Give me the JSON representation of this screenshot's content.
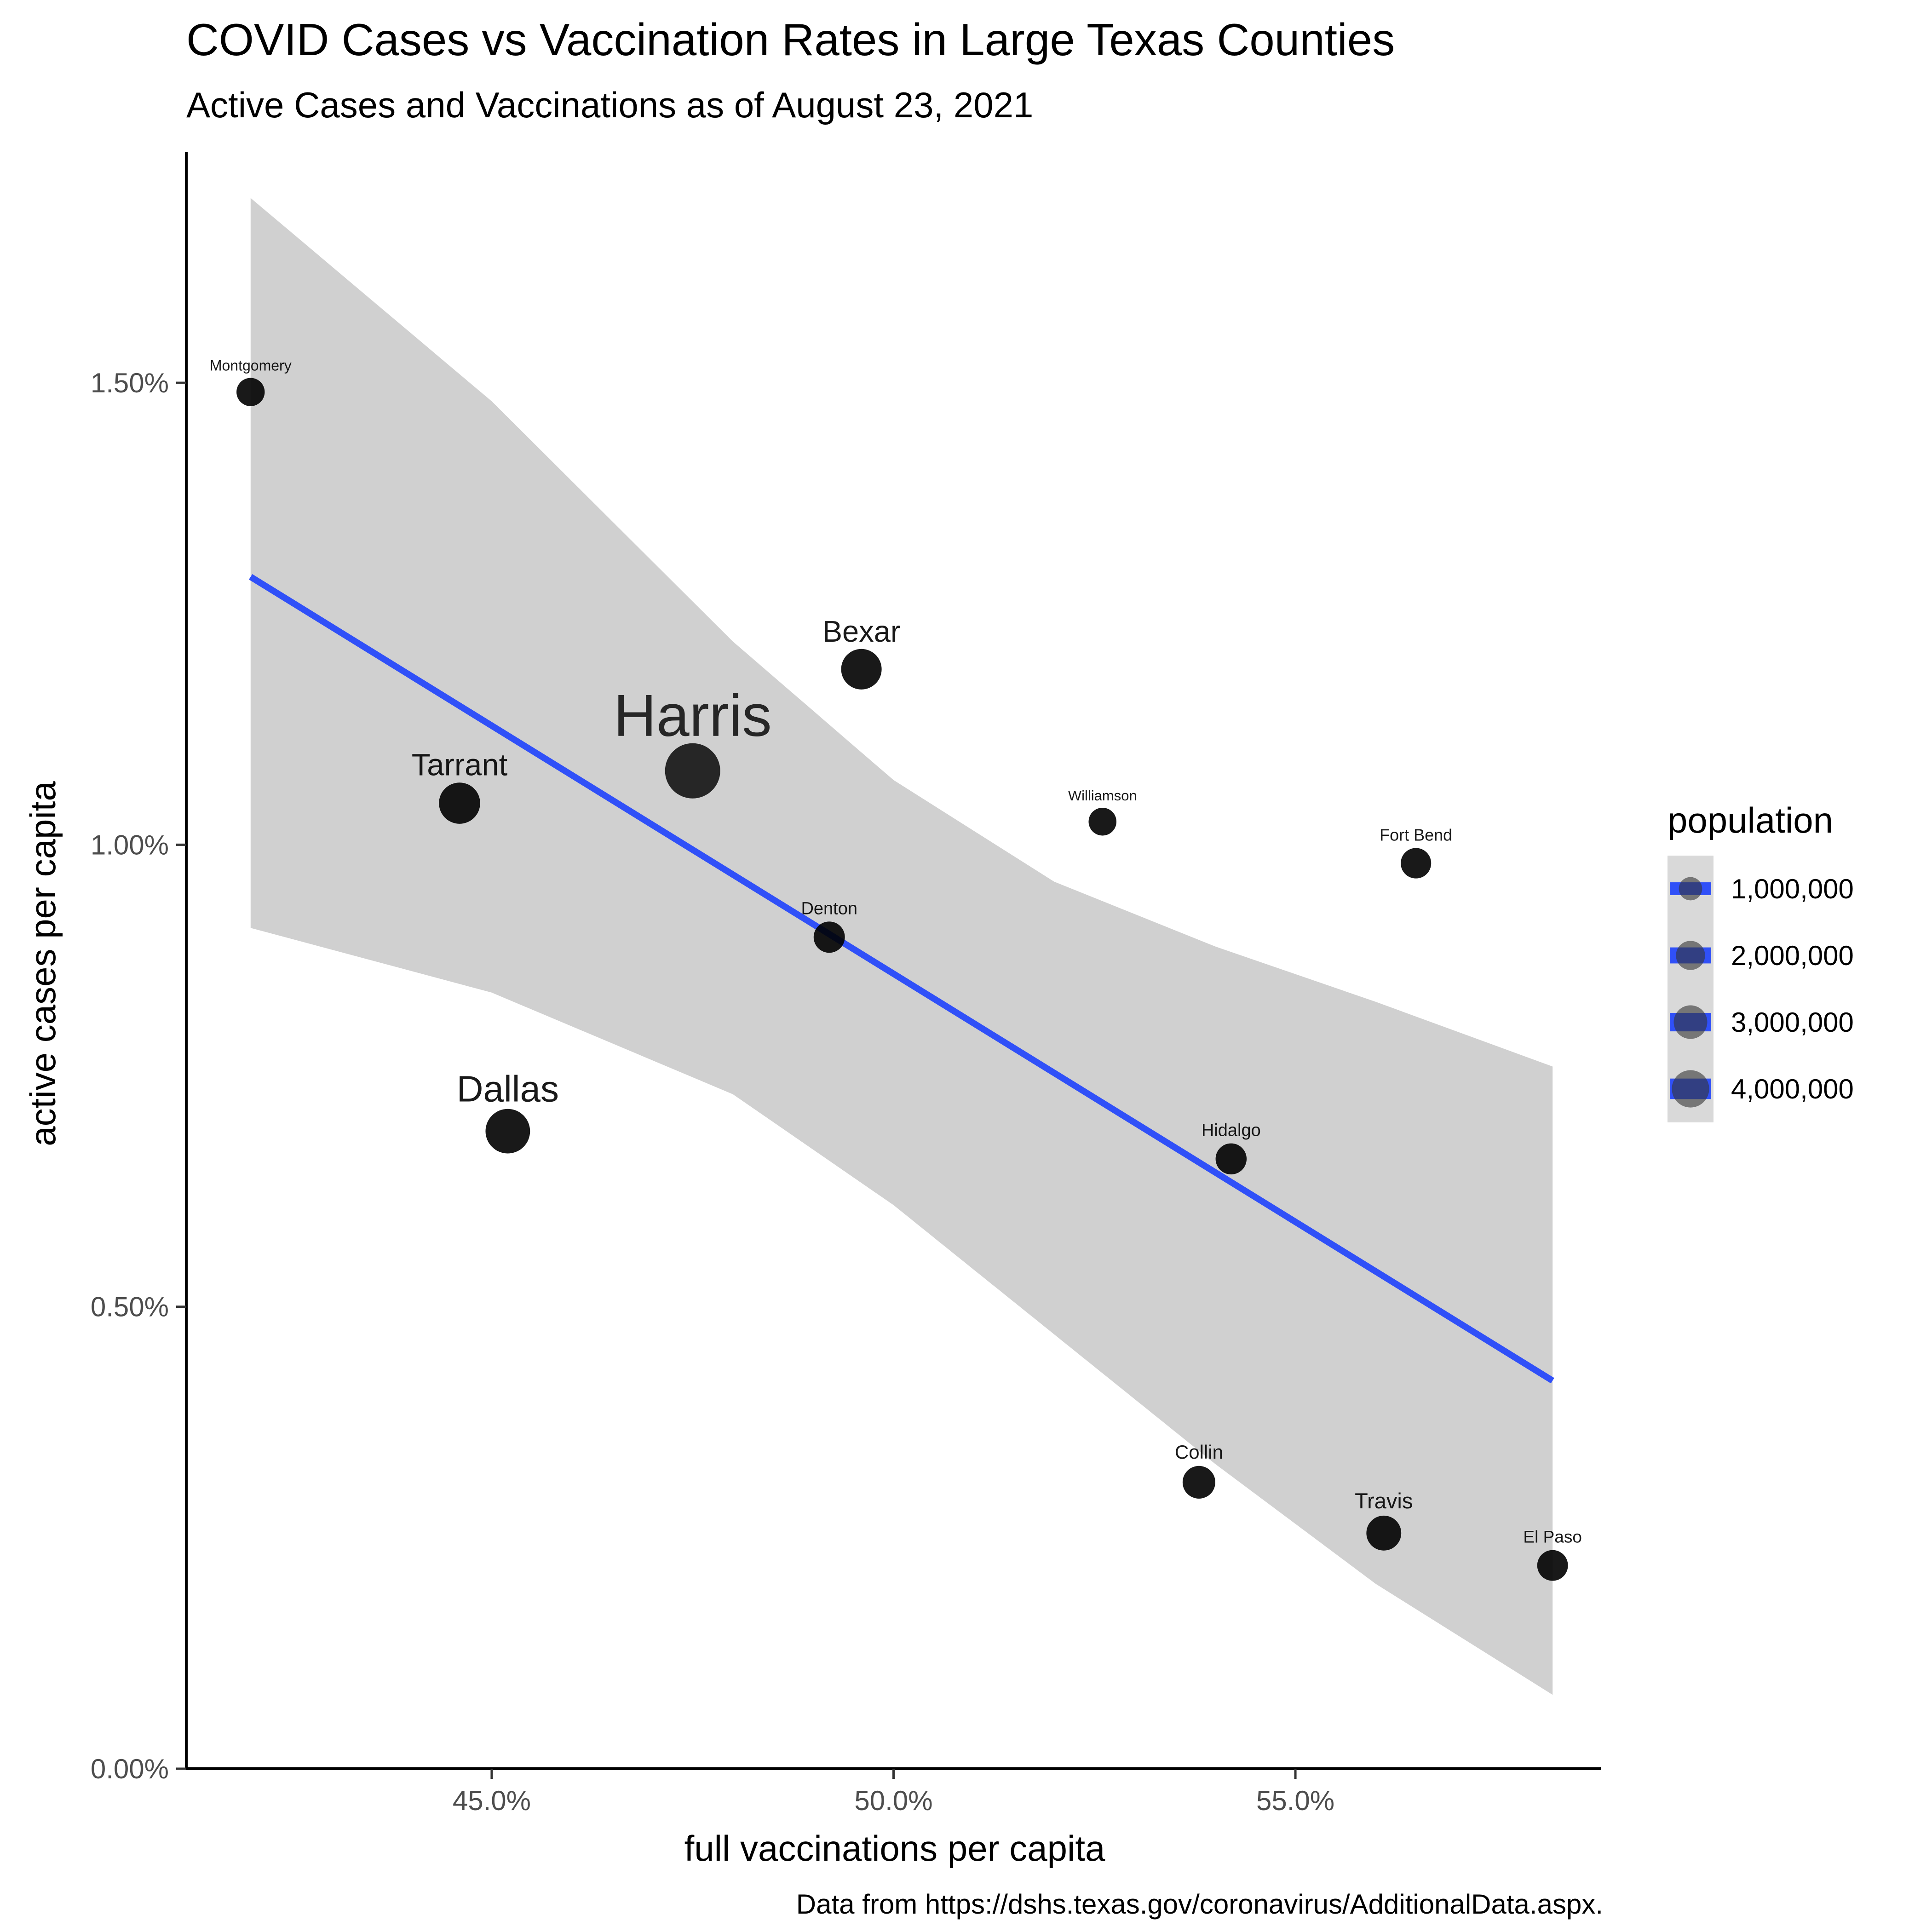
{
  "chart_data": {
    "type": "scatter",
    "title": "COVID Cases vs Vaccination Rates  in Large Texas Counties",
    "subtitle": "Active Cases and Vaccinations as of August 23, 2021",
    "xlabel": "full vaccinations per capita",
    "ylabel": "active cases per capita",
    "caption": "Data from https://dshs.texas.gov/coronavirus/AdditionalData.aspx.",
    "xlim": [
      41.2,
      58.8
    ],
    "ylim": [
      0.0,
      1.75
    ],
    "x_ticks": [
      {
        "value": 45.0,
        "label": "45.0%"
      },
      {
        "value": 50.0,
        "label": "50.0%"
      },
      {
        "value": 55.0,
        "label": "55.0%"
      }
    ],
    "y_ticks": [
      {
        "value": 0.0,
        "label": "0.00%"
      },
      {
        "value": 0.5,
        "label": "0.50%"
      },
      {
        "value": 1.0,
        "label": "1.00%"
      },
      {
        "value": 1.5,
        "label": "1.50%"
      }
    ],
    "points": [
      {
        "label": "Montgomery",
        "x": 42.0,
        "y": 1.49,
        "population": 620000
      },
      {
        "label": "Tarrant",
        "x": 44.6,
        "y": 1.045,
        "population": 2110000
      },
      {
        "label": "Dallas",
        "x": 45.2,
        "y": 0.69,
        "population": 2635000
      },
      {
        "label": "Harris",
        "x": 47.5,
        "y": 1.08,
        "population": 4713000
      },
      {
        "label": "Bexar",
        "x": 49.6,
        "y": 1.19,
        "population": 2009000
      },
      {
        "label": "Denton",
        "x": 49.2,
        "y": 0.9,
        "population": 887000
      },
      {
        "label": "Williamson",
        "x": 52.6,
        "y": 1.025,
        "population": 590000
      },
      {
        "label": "Fort Bend",
        "x": 56.5,
        "y": 0.98,
        "population": 811000
      },
      {
        "label": "Hidalgo",
        "x": 54.2,
        "y": 0.66,
        "population": 868000
      },
      {
        "label": "Collin",
        "x": 53.8,
        "y": 0.31,
        "population": 1034000
      },
      {
        "label": "Travis",
        "x": 56.1,
        "y": 0.255,
        "population": 1273000
      },
      {
        "label": "El Paso",
        "x": 58.2,
        "y": 0.22,
        "population": 839000
      }
    ],
    "trend_line": {
      "x": [
        42.0,
        58.2
      ],
      "y": [
        1.29,
        0.42
      ],
      "color": "#3050F8"
    },
    "confidence_band": {
      "x": [
        42.0,
        45.0,
        48.0,
        50.0,
        52.0,
        54.0,
        56.0,
        58.2
      ],
      "upper": [
        1.7,
        1.48,
        1.22,
        1.07,
        0.96,
        0.89,
        0.83,
        0.76
      ],
      "lower": [
        0.91,
        0.84,
        0.73,
        0.61,
        0.47,
        0.33,
        0.2,
        0.08
      ],
      "color": "#d0d0d0"
    },
    "legend": {
      "title": "population",
      "position": "right",
      "items": [
        {
          "value": 1000000,
          "label": "1,000,000"
        },
        {
          "value": 2000000,
          "label": "2,000,000"
        },
        {
          "value": 3000000,
          "label": "3,000,000"
        },
        {
          "value": 4000000,
          "label": "4,000,000"
        }
      ]
    },
    "grid": false,
    "colors": {
      "points": "#000000",
      "line": "#3050F8",
      "band": "#d0d0d0",
      "legend_key_bg": "#d9d9d9"
    }
  }
}
